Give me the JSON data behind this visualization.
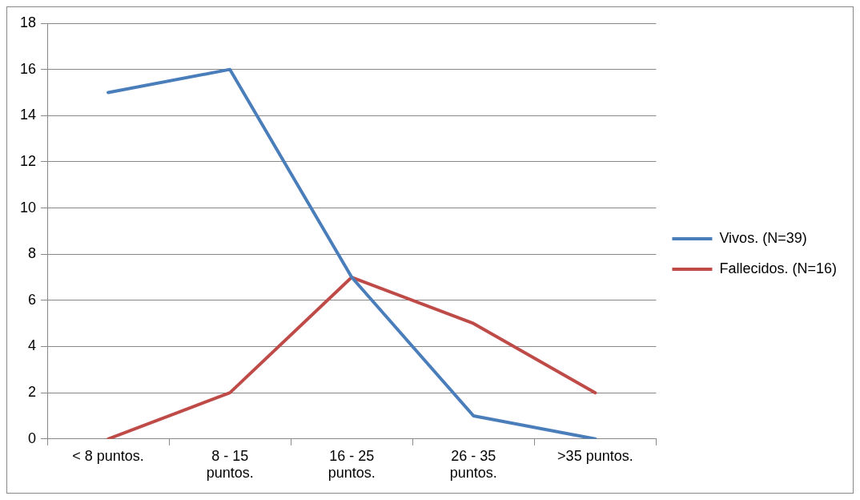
{
  "chart_data": {
    "type": "line",
    "categories": [
      "< 8 puntos.",
      "8 - 15 puntos.",
      "16 - 25 puntos.",
      "26 - 35 puntos.",
      ">35 puntos."
    ],
    "series": [
      {
        "name": "Vivos. (N=39)",
        "color": "#4a7ebb",
        "values": [
          15,
          16,
          7,
          1,
          0
        ]
      },
      {
        "name": "Fallecidos. (N=16)",
        "color": "#be4b48",
        "values": [
          0,
          2,
          7,
          5,
          2
        ]
      }
    ],
    "ylim": [
      0,
      18
    ],
    "yticks": [
      0,
      2,
      4,
      6,
      8,
      10,
      12,
      14,
      16,
      18
    ],
    "grid": "y",
    "legend": "right",
    "marker": "none",
    "line_style": "solid"
  }
}
